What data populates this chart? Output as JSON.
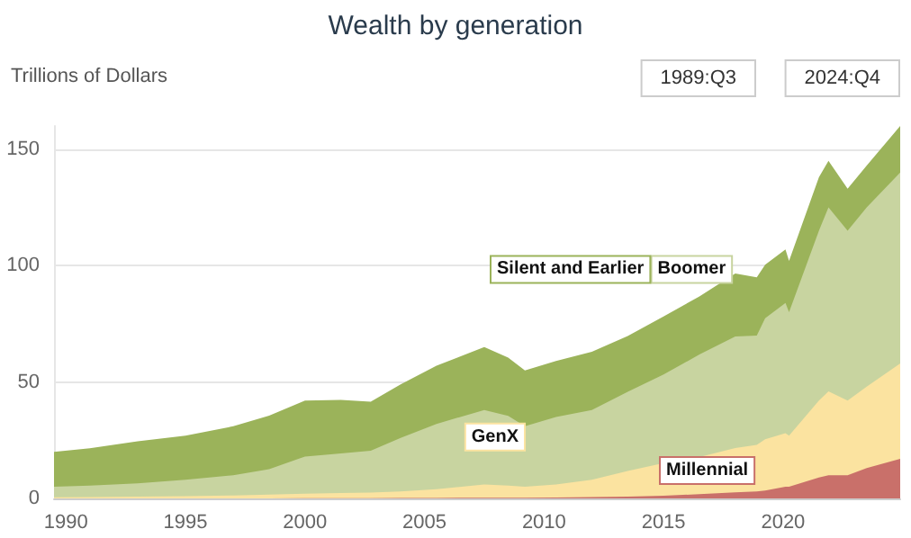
{
  "chart_data": {
    "type": "area",
    "title": "Wealth by generation",
    "ylabel": "Trillions of Dollars",
    "stacked": true,
    "grid": "y",
    "legend": false,
    "marker": "none",
    "annotations": [
      "1989:Q3",
      "2024:Q4"
    ],
    "x": [
      1989.5,
      1991,
      1993,
      1995,
      1997,
      1998.5,
      2000,
      2001.5,
      2002.75,
      2004,
      2005.5,
      2007.5,
      2008.5,
      2009.2,
      2010.5,
      2012,
      2013.5,
      2015,
      2016.5,
      2018,
      2018.9,
      2019.25,
      2020.1,
      2020.25,
      2021.5,
      2021.9,
      2022.7,
      2023.5,
      2024.9
    ],
    "xlim": [
      1989.5,
      2024.9
    ],
    "xticks": [
      1990,
      1995,
      2000,
      2005,
      2010,
      2015,
      2020
    ],
    "ylim": [
      0,
      160
    ],
    "yticks": [
      0,
      50,
      100,
      150
    ],
    "series": [
      {
        "name": "Millennial",
        "color": "#c9706a",
        "values": [
          0,
          0,
          0,
          0,
          0,
          0,
          0.1,
          0.1,
          0.1,
          0.2,
          0.2,
          0.3,
          0.3,
          0.3,
          0.4,
          0.6,
          0.8,
          1.2,
          1.8,
          2.6,
          3,
          3.4,
          5,
          5,
          9,
          10,
          10,
          13,
          17
        ]
      },
      {
        "name": "GenX",
        "color": "#fbe3a0",
        "values": [
          0.5,
          0.6,
          0.8,
          1,
          1.3,
          1.6,
          1.9,
          2.2,
          2.4,
          2.8,
          3.8,
          5.7,
          5.2,
          4.7,
          5.6,
          7.4,
          11,
          14,
          16,
          19,
          20,
          22,
          23,
          22,
          33,
          36,
          32,
          35,
          41
        ]
      },
      {
        "name": "Boomer",
        "color": "#c8d4a0",
        "values": [
          4.5,
          4.9,
          5.7,
          7,
          8.7,
          11,
          16,
          17,
          18,
          23,
          28,
          32,
          30,
          26,
          29,
          30,
          34,
          38,
          44,
          48,
          47,
          52,
          56,
          53,
          73,
          79,
          73,
          77,
          82
        ]
      },
      {
        "name": "Silent and Earlier",
        "color": "#9bb35a",
        "values": [
          15,
          16,
          18,
          19,
          21,
          23,
          24,
          23,
          21,
          23,
          25,
          27,
          25,
          24,
          24,
          25,
          24,
          25,
          25,
          27,
          25,
          23,
          23,
          22,
          23,
          20,
          18,
          18,
          20
        ]
      }
    ]
  }
}
